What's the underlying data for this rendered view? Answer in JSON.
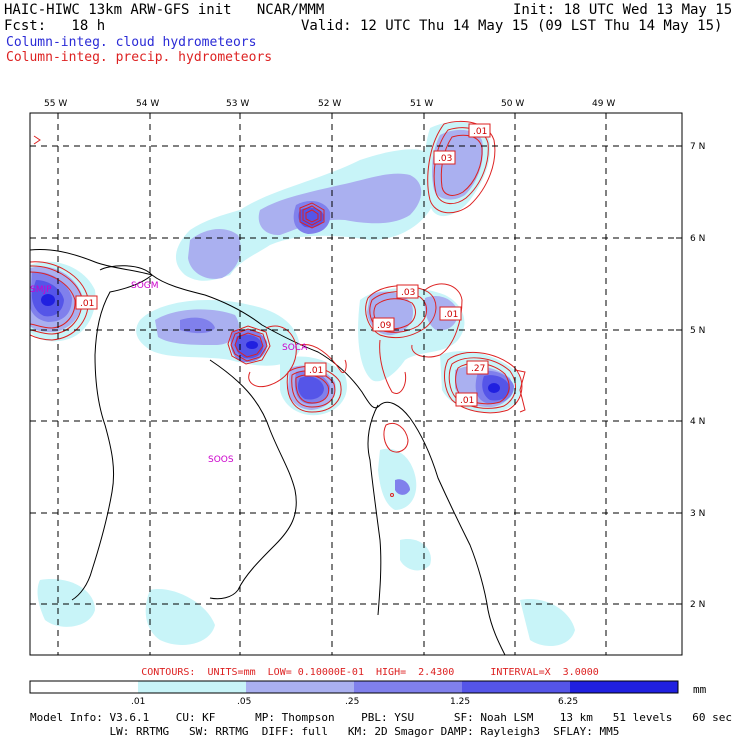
{
  "header": {
    "title": "HAIC-HIWC 13km ARW-GFS init   NCAR/MMM",
    "fcst": "Fcst:   18 h",
    "init": "Init: 18 UTC Wed 13 May 15",
    "valid": "Valid: 12 UTC Thu 14 May 15 (09 LST Thu 14 May 15)",
    "field1": "Column-integ. cloud hydrometeors",
    "field2": "Column-integ. precip. hydrometeors"
  },
  "map": {
    "lon_labels": [
      "55 W",
      "54 W",
      "53 W",
      "52 W",
      "51 W",
      "50 W",
      "49 W"
    ],
    "lat_labels": [
      "7 N",
      "6 N",
      "5 N",
      "4 N",
      "3 N",
      "2 N"
    ],
    "stations": [
      "SMJP",
      "SOGM",
      "SOCA",
      "SOOS"
    ],
    "contour_labels": [
      ".01",
      ".03",
      ".01",
      ".03",
      ".09",
      ".01",
      ".01",
      ".27",
      ".01"
    ],
    "colors": {
      "fill_1": "#c8f4f8",
      "fill_2": "#aab0f0",
      "fill_3": "#8080ec",
      "fill_4": "#5555e8",
      "fill_5": "#2020e0",
      "contour": "#dd2222",
      "station": "#cc00cc"
    }
  },
  "footer": {
    "contours": "CONTOURS:  UNITS=mm  LOW= 0.10000E-01  HIGH=  2.4300      INTERVAL=X  3.0000",
    "legend_values": [
      ".01",
      ".05",
      ".25",
      "1.25",
      "6.25"
    ],
    "legend_units": "mm",
    "model_line1": "Model Info: V3.6.1    CU: KF      MP: Thompson    PBL: YSU      SF: Noah LSM    13 km   51 levels   60 sec",
    "model_line2": "            LW: RRTMG   SW: RRTMG  DIFF: full   KM: 2D Smagor DAMP: Rayleigh3  SFLAY: MM5"
  }
}
